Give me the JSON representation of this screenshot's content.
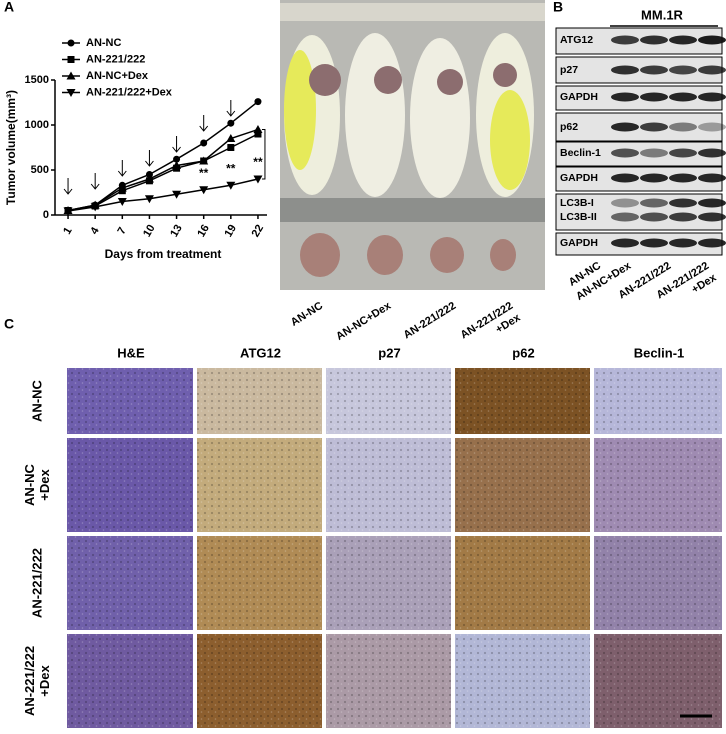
{
  "panels": {
    "a": "A",
    "b": "B",
    "c": "C"
  },
  "chart_data": {
    "type": "line",
    "y_label": "Tumor volume(mm³)",
    "x_label": "Days from treatment",
    "x": [
      1,
      4,
      7,
      10,
      13,
      16,
      19,
      22
    ],
    "xlim": [
      0,
      23
    ],
    "xticks": [
      1,
      4,
      7,
      10,
      13,
      16,
      19,
      22
    ],
    "ylim": [
      0,
      1500
    ],
    "yticks": [
      0,
      500,
      1000,
      1500
    ],
    "series": [
      {
        "name": "AN-NC",
        "marker": "circle",
        "color": "#000000",
        "values": [
          50,
          110,
          330,
          450,
          620,
          800,
          1020,
          1260
        ]
      },
      {
        "name": "AN-221/222",
        "marker": "square",
        "color": "#000000",
        "values": [
          50,
          100,
          270,
          380,
          520,
          600,
          750,
          900
        ]
      },
      {
        "name": "AN-NC+Dex",
        "marker": "triangle-up",
        "color": "#000000",
        "values": [
          50,
          110,
          300,
          400,
          550,
          600,
          850,
          950
        ]
      },
      {
        "name": "AN-221/222+Dex",
        "marker": "triangle-down",
        "color": "#000000",
        "values": [
          45,
          90,
          150,
          180,
          230,
          280,
          330,
          400
        ]
      }
    ],
    "annotations": [
      {
        "text": "**",
        "x": 16
      },
      {
        "text": "**",
        "x": 19
      },
      {
        "text": "**",
        "x": 22
      }
    ]
  },
  "photo_labels": [
    [
      "AN-NC"
    ],
    [
      "AN-NC+Dex"
    ],
    [
      "AN-221/222"
    ],
    [
      "AN-221/222",
      "+Dex"
    ]
  ],
  "blot": {
    "title": "MM.1R",
    "rows": [
      "ATG12",
      "p27",
      "GAPDH",
      "p62",
      "Beclin-1",
      "GAPDH",
      "LC3B-I",
      "LC3B-II",
      "GAPDH"
    ],
    "lanes": [
      [
        "AN-NC"
      ],
      [
        "AN-NC+Dex"
      ],
      [
        "AN-221/222"
      ],
      [
        "AN-221/222",
        "+Dex"
      ]
    ]
  },
  "ihc": {
    "columns": [
      "H&E",
      "ATG12",
      "p27",
      "p62",
      "Beclin-1"
    ],
    "rows": [
      [
        "AN-NC"
      ],
      [
        "AN-NC",
        "+Dex"
      ],
      [
        "AN-221/222"
      ],
      [
        "AN-221/222",
        "+Dex"
      ]
    ]
  }
}
